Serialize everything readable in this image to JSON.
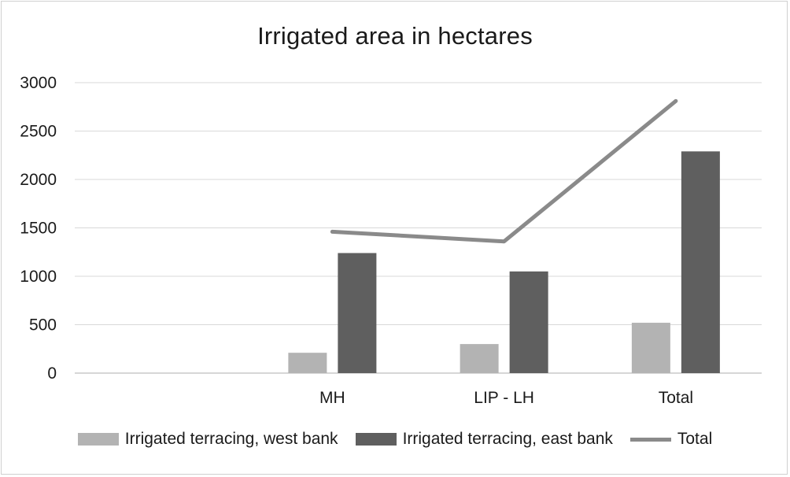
{
  "chart_data": {
    "type": "bar",
    "title": "Irrigated area in hectares",
    "xlabel": "",
    "ylabel": "",
    "categories": [
      "",
      "MH",
      "LIP - LH",
      "Total"
    ],
    "ylim": [
      0,
      3000
    ],
    "yticks": [
      0,
      500,
      1000,
      1500,
      2000,
      2500,
      3000
    ],
    "grid": true,
    "legend_position": "bottom",
    "series": [
      {
        "name": "Irrigated terracing, west bank",
        "kind": "bar",
        "color": "#b3b3b3",
        "values": [
          null,
          210,
          300,
          520
        ]
      },
      {
        "name": "Irrigated terracing, east bank",
        "kind": "bar",
        "color": "#5f5f5f",
        "values": [
          null,
          1240,
          1050,
          2290
        ]
      },
      {
        "name": "Total",
        "kind": "line",
        "color": "#8a8a8a",
        "values": [
          null,
          1460,
          1360,
          2810
        ]
      }
    ]
  }
}
